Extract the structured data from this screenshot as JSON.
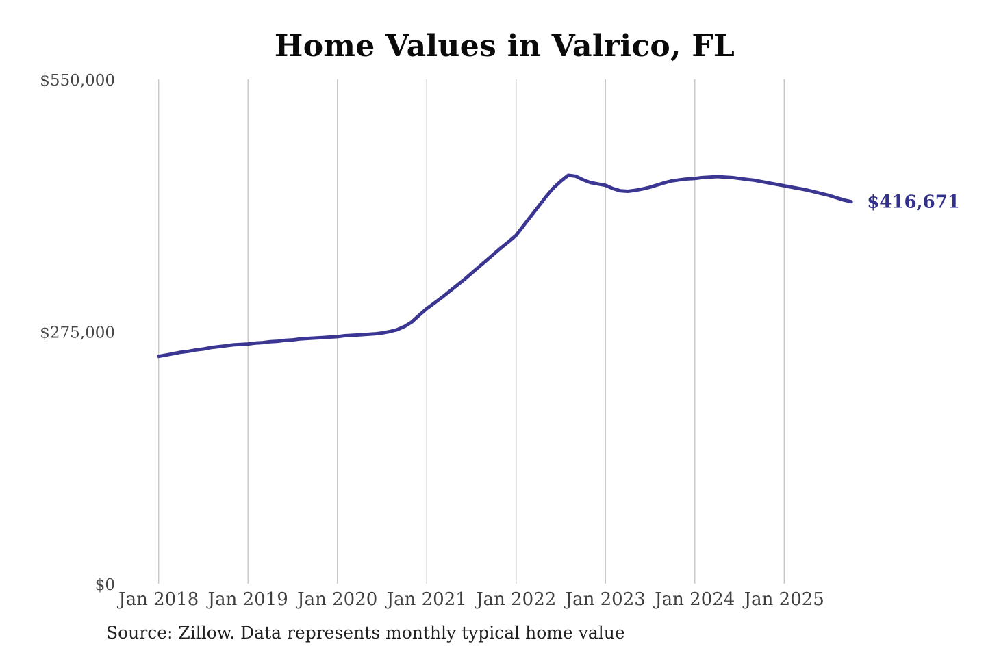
{
  "header": {
    "title": "Home Values in Valrico, FL"
  },
  "footer": {
    "source": "Source: Zillow. Data represents monthly typical home value"
  },
  "chart_data": {
    "type": "line",
    "title": "Home Values in Valrico, FL",
    "xlabel": "",
    "ylabel": "",
    "frequency": "monthly",
    "x_start": "Jan 2018",
    "x_end": "Oct 2025",
    "x_tick_labels": [
      "Jan 2018",
      "Jan 2019",
      "Jan 2020",
      "Jan 2021",
      "Jan 2022",
      "Jan 2023",
      "Jan 2024",
      "Jan 2025"
    ],
    "y_ticks": [
      {
        "label": "$0",
        "value": 0
      },
      {
        "label": "$275,000",
        "value": 275000
      },
      {
        "label": "$550,000",
        "value": 550000
      }
    ],
    "ylim": [
      0,
      550000
    ],
    "grid": "vertical-only",
    "legend": "none",
    "line_color": "#3b3691",
    "grid_color": "#c8c8c8",
    "tick_color": "#3f3f3f",
    "end_label": "$416,671",
    "end_label_color": "#34308e",
    "end_value": 416671,
    "series": [
      {
        "name": "Typical home value",
        "values": [
          248000,
          249500,
          251000,
          252500,
          253500,
          255000,
          256000,
          257500,
          258500,
          259500,
          260500,
          261000,
          261500,
          262500,
          263000,
          264000,
          264500,
          265500,
          266000,
          267000,
          267500,
          268000,
          268500,
          269000,
          269500,
          270500,
          271000,
          271500,
          272000,
          272500,
          273500,
          275000,
          277000,
          280500,
          285500,
          293000,
          300000,
          306000,
          312000,
          318500,
          325000,
          331500,
          338500,
          345500,
          352500,
          359500,
          366500,
          373000,
          380000,
          390500,
          401000,
          411500,
          422000,
          431500,
          439000,
          445500,
          444500,
          440500,
          437500,
          436000,
          434500,
          431000,
          428500,
          428000,
          429000,
          430500,
          432500,
          435000,
          437500,
          439500,
          440500,
          441500,
          442000,
          443000,
          443500,
          444000,
          443500,
          443000,
          442000,
          441000,
          440000,
          438500,
          437000,
          435500,
          434000,
          432500,
          431000,
          429500,
          427500,
          425500,
          423500,
          421000,
          418500,
          416671
        ]
      }
    ]
  }
}
